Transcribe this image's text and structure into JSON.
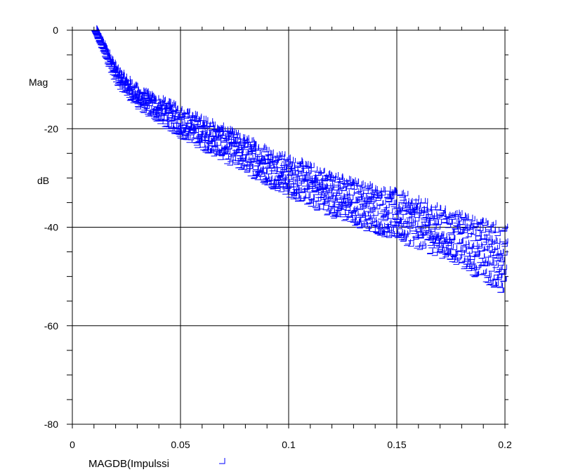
{
  "chart_data": {
    "type": "scatter",
    "title": "",
    "ylabel_lines": [
      "Mag",
      "dB"
    ],
    "xlabel": "",
    "xlim": [
      0,
      0.2
    ],
    "ylim": [
      -80,
      0
    ],
    "x_ticks": [
      0,
      0.05,
      0.1,
      0.15,
      0.2
    ],
    "x_tick_labels": [
      "0",
      "0.05",
      "0.1",
      "0.15",
      "0.2"
    ],
    "y_ticks": [
      0,
      -20,
      -40,
      -60,
      -80
    ],
    "y_tick_labels": [
      "0",
      "-20",
      "-40",
      "-60",
      "-80"
    ],
    "grid": true,
    "marker": "step-bracket",
    "series": [
      {
        "name": "MAGDB(Impulssi",
        "color": "#0000ff",
        "envelope": {
          "x": [
            0.01,
            0.02,
            0.03,
            0.05,
            0.075,
            0.1,
            0.125,
            0.15,
            0.175,
            0.2
          ],
          "upper": [
            0,
            -8,
            -12,
            -16,
            -21,
            -26,
            -30,
            -33,
            -37,
            -40
          ],
          "lower": [
            0,
            -11,
            -16,
            -22,
            -28,
            -34,
            -39,
            -43,
            -47,
            -54
          ]
        },
        "sample_count": 1800
      }
    ]
  }
}
